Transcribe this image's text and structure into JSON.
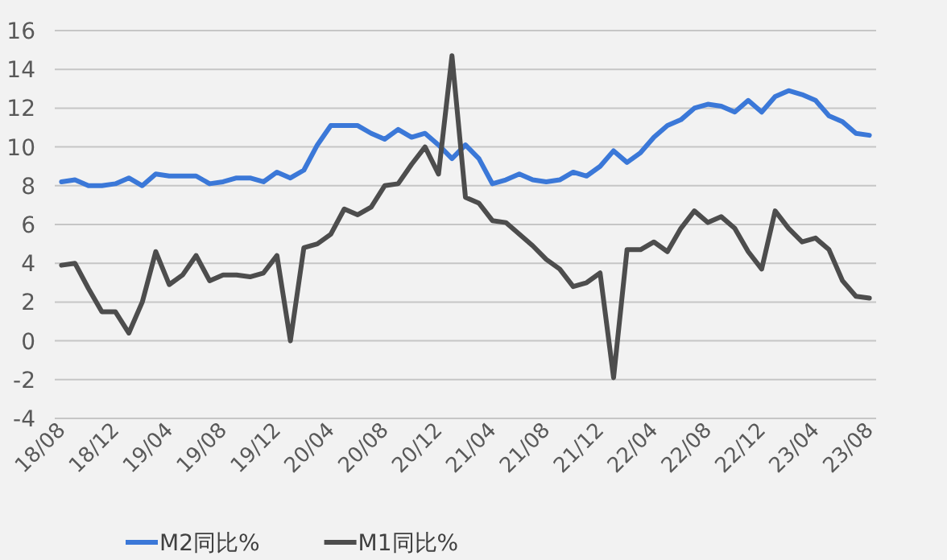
{
  "chart_data": {
    "type": "line",
    "categories": [
      "18/08",
      null,
      null,
      null,
      "18/12",
      null,
      null,
      null,
      "19/04",
      null,
      null,
      null,
      "19/08",
      null,
      null,
      null,
      "19/12",
      null,
      null,
      null,
      "20/04",
      null,
      null,
      null,
      "20/08",
      null,
      null,
      null,
      "20/12",
      null,
      null,
      null,
      "21/04",
      null,
      null,
      null,
      "21/08",
      null,
      null,
      null,
      "21/12",
      null,
      null,
      null,
      "22/04",
      null,
      null,
      null,
      "22/08",
      null,
      null,
      null,
      "22/12",
      null,
      null,
      null,
      "23/04",
      null,
      null,
      null,
      "23/08"
    ],
    "series": [
      {
        "name": "M2同比%",
        "color": "#3b78d8",
        "values": [
          8.2,
          8.3,
          8.0,
          8.0,
          8.1,
          8.4,
          8.0,
          8.6,
          8.5,
          8.5,
          8.5,
          8.1,
          8.2,
          8.4,
          8.4,
          8.2,
          8.7,
          8.4,
          8.8,
          10.1,
          11.1,
          11.1,
          11.1,
          10.7,
          10.4,
          10.9,
          10.5,
          10.7,
          10.1,
          9.4,
          10.1,
          9.4,
          8.1,
          8.3,
          8.6,
          8.3,
          8.2,
          8.3,
          8.7,
          8.5,
          9.0,
          9.8,
          9.2,
          9.7,
          10.5,
          11.1,
          11.4,
          12.0,
          12.2,
          12.1,
          11.8,
          12.4,
          11.8,
          12.6,
          12.9,
          12.7,
          12.4,
          11.6,
          11.3,
          10.7,
          10.6
        ]
      },
      {
        "name": "M1同比%",
        "color": "#4d4d4d",
        "values": [
          3.9,
          4.0,
          2.7,
          1.5,
          1.5,
          0.4,
          2.0,
          4.6,
          2.9,
          3.4,
          4.4,
          3.1,
          3.4,
          3.4,
          3.3,
          3.5,
          4.4,
          0.0,
          4.8,
          5.0,
          5.5,
          6.8,
          6.5,
          6.9,
          8.0,
          8.1,
          9.1,
          10.0,
          8.6,
          14.7,
          7.4,
          7.1,
          6.2,
          6.1,
          5.5,
          4.9,
          4.2,
          3.7,
          2.8,
          3.0,
          3.5,
          -1.9,
          4.7,
          4.7,
          5.1,
          4.6,
          5.8,
          6.7,
          6.1,
          6.4,
          5.8,
          4.6,
          3.7,
          6.7,
          5.8,
          5.1,
          5.3,
          4.7,
          3.1,
          2.3,
          2.2
        ]
      }
    ],
    "ylim": [
      -4,
      16
    ],
    "yticks": [
      -4,
      -2,
      0,
      2,
      4,
      6,
      8,
      10,
      12,
      14,
      16
    ],
    "grid": "y",
    "legend": "bottom"
  }
}
